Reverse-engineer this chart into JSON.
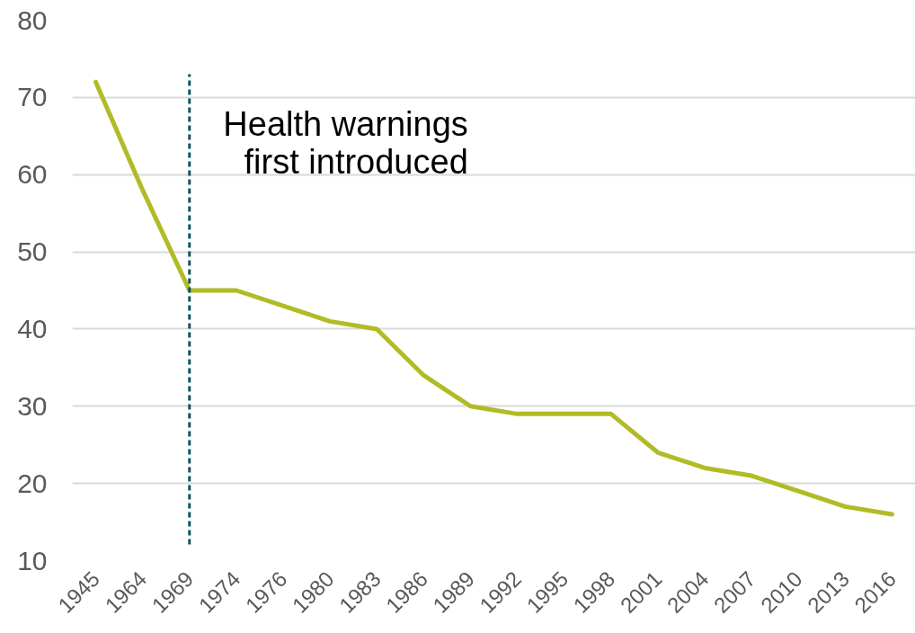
{
  "chart_data": {
    "type": "line",
    "categories": [
      "1945",
      "1964",
      "1969",
      "1974",
      "1976",
      "1980",
      "1983",
      "1986",
      "1989",
      "1992",
      "1995",
      "1998",
      "2001",
      "2004",
      "2007",
      "2010",
      "2013",
      "2016"
    ],
    "series": [
      {
        "color": "#b2bb26",
        "values": [
          72,
          58,
          45,
          45,
          43,
          41,
          40,
          34,
          30,
          29,
          29,
          29,
          24,
          22,
          21,
          19,
          17,
          16
        ]
      }
    ],
    "ylim": [
      10,
      80
    ],
    "yticks": [
      10,
      20,
      30,
      40,
      50,
      60,
      70,
      80
    ],
    "grid": "y",
    "line_style": "solid",
    "ref_lines": [
      {
        "axis": "x",
        "value": "1969",
        "label": "Health warnings\nfirst introduced",
        "color": "#0d5563",
        "line_style": "dashed"
      }
    ]
  }
}
